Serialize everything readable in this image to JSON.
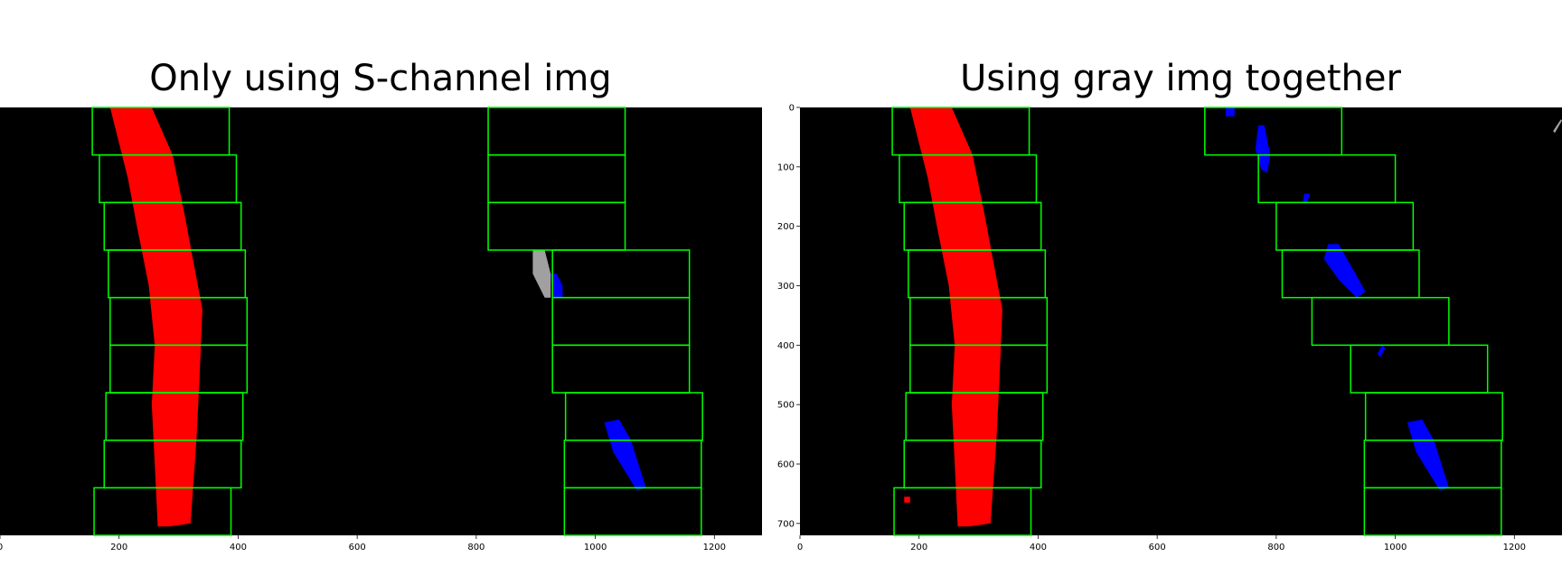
{
  "chart_data": [
    {
      "type": "image",
      "title": "Only using S-channel img",
      "xlim": [
        0,
        1280
      ],
      "ylim": [
        720,
        0
      ],
      "xticks": [
        0,
        200,
        400,
        600,
        800,
        1000,
        1200
      ],
      "yticks": [],
      "show_x_axis": true,
      "show_y_axis": false,
      "windows": [
        [
          155,
          0,
          385,
          80
        ],
        [
          167,
          80,
          397,
          160
        ],
        [
          175,
          160,
          405,
          240
        ],
        [
          182,
          240,
          412,
          320
        ],
        [
          185,
          320,
          415,
          400
        ],
        [
          185,
          400,
          415,
          480
        ],
        [
          178,
          480,
          408,
          560
        ],
        [
          175,
          560,
          405,
          640
        ],
        [
          158,
          640,
          388,
          720
        ],
        [
          820,
          0,
          1050,
          80
        ],
        [
          820,
          80,
          1050,
          160
        ],
        [
          820,
          160,
          1050,
          240
        ],
        [
          928,
          240,
          1158,
          320
        ],
        [
          928,
          320,
          1158,
          400
        ],
        [
          928,
          400,
          1158,
          480
        ],
        [
          950,
          480,
          1180,
          560
        ],
        [
          948,
          560,
          1178,
          640
        ],
        [
          948,
          640,
          1178,
          720
        ]
      ],
      "left_lane_pixels": [
        [
          [
            185,
            0
          ],
          [
            255,
            0
          ],
          [
            290,
            80
          ],
          [
            310,
            180
          ],
          [
            325,
            260
          ],
          [
            340,
            340
          ],
          [
            335,
            460
          ],
          [
            330,
            560
          ],
          [
            320,
            700
          ],
          [
            285,
            705
          ],
          [
            265,
            705
          ],
          [
            260,
            600
          ],
          [
            255,
            500
          ],
          [
            260,
            400
          ],
          [
            250,
            300
          ],
          [
            230,
            200
          ],
          [
            215,
            120
          ]
        ]
      ],
      "right_lane_pixels": [
        [
          [
            1015,
            530
          ],
          [
            1040,
            525
          ],
          [
            1060,
            560
          ],
          [
            1085,
            640
          ],
          [
            1070,
            645
          ],
          [
            1030,
            580
          ]
        ],
        [
          [
            925,
            280
          ],
          [
            935,
            280
          ],
          [
            945,
            300
          ],
          [
            945,
            320
          ],
          [
            930,
            320
          ],
          [
            927,
            300
          ]
        ]
      ],
      "gray_pixels": [
        [
          [
            895,
            240
          ],
          [
            915,
            240
          ],
          [
            925,
            280
          ],
          [
            925,
            320
          ],
          [
            915,
            320
          ],
          [
            895,
            280
          ]
        ]
      ]
    },
    {
      "type": "image",
      "title": "Using gray img together",
      "xlim": [
        0,
        1280
      ],
      "ylim": [
        720,
        0
      ],
      "xticks": [
        0,
        200,
        400,
        600,
        800,
        1000,
        1200
      ],
      "yticks": [
        0,
        100,
        200,
        300,
        400,
        500,
        600,
        700
      ],
      "show_x_axis": true,
      "show_y_axis": true,
      "windows": [
        [
          155,
          0,
          385,
          80
        ],
        [
          167,
          80,
          397,
          160
        ],
        [
          175,
          160,
          405,
          240
        ],
        [
          182,
          240,
          412,
          320
        ],
        [
          185,
          320,
          415,
          400
        ],
        [
          185,
          400,
          415,
          480
        ],
        [
          178,
          480,
          408,
          560
        ],
        [
          175,
          560,
          405,
          640
        ],
        [
          158,
          640,
          388,
          720
        ],
        [
          680,
          0,
          910,
          80
        ],
        [
          770,
          80,
          1000,
          160
        ],
        [
          800,
          160,
          1030,
          240
        ],
        [
          810,
          240,
          1040,
          320
        ],
        [
          860,
          320,
          1090,
          400
        ],
        [
          925,
          400,
          1155,
          480
        ],
        [
          950,
          480,
          1180,
          560
        ],
        [
          948,
          560,
          1178,
          640
        ],
        [
          948,
          640,
          1178,
          720
        ]
      ],
      "left_lane_pixels": [
        [
          [
            185,
            0
          ],
          [
            255,
            0
          ],
          [
            290,
            80
          ],
          [
            310,
            180
          ],
          [
            325,
            260
          ],
          [
            340,
            340
          ],
          [
            335,
            460
          ],
          [
            330,
            560
          ],
          [
            320,
            700
          ],
          [
            285,
            705
          ],
          [
            265,
            705
          ],
          [
            260,
            600
          ],
          [
            255,
            500
          ],
          [
            260,
            400
          ],
          [
            250,
            300
          ],
          [
            230,
            200
          ],
          [
            215,
            120
          ]
        ],
        [
          [
            175,
            655
          ],
          [
            185,
            655
          ],
          [
            185,
            665
          ],
          [
            175,
            665
          ]
        ]
      ],
      "right_lane_pixels": [
        [
          [
            715,
            0
          ],
          [
            730,
            0
          ],
          [
            730,
            15
          ],
          [
            715,
            15
          ]
        ],
        [
          [
            770,
            30
          ],
          [
            780,
            30
          ],
          [
            790,
            80
          ],
          [
            785,
            110
          ],
          [
            775,
            105
          ],
          [
            765,
            70
          ]
        ],
        [
          [
            847,
            145
          ],
          [
            857,
            145
          ],
          [
            852,
            160
          ],
          [
            845,
            158
          ]
        ],
        [
          [
            887,
            230
          ],
          [
            905,
            230
          ],
          [
            950,
            310
          ],
          [
            935,
            320
          ],
          [
            905,
            290
          ],
          [
            880,
            255
          ]
        ],
        [
          [
            970,
            415
          ],
          [
            978,
            400
          ],
          [
            983,
            405
          ],
          [
            975,
            420
          ]
        ],
        [
          [
            1020,
            530
          ],
          [
            1045,
            525
          ],
          [
            1065,
            560
          ],
          [
            1090,
            640
          ],
          [
            1075,
            645
          ],
          [
            1035,
            580
          ]
        ]
      ],
      "gray_pixels": [
        [
          [
            1265,
            40
          ],
          [
            1278,
            20
          ],
          [
            1280,
            22
          ],
          [
            1268,
            43
          ]
        ]
      ]
    }
  ],
  "colors": {
    "background": "#000000",
    "window": "#00ff00",
    "left_lane": "#ff0000",
    "right_lane": "#0000ff",
    "gray": "#c8c8c8"
  }
}
